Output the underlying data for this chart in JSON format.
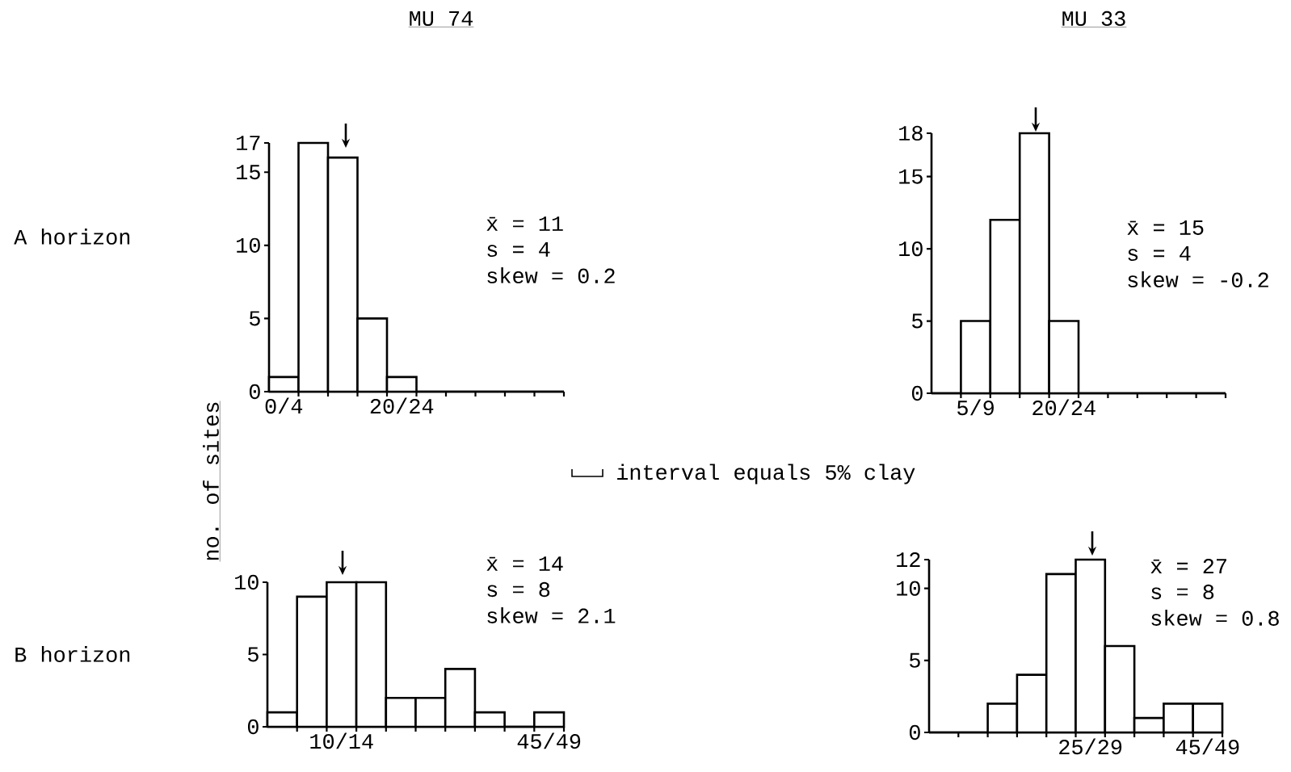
{
  "chart_data": [
    {
      "type": "bar",
      "title": "MU 74",
      "subtitle": "A horizon",
      "ylabel": "no. of sites",
      "categories": [
        "0/4",
        null,
        null,
        null,
        "20/24",
        null,
        null,
        null,
        null,
        null
      ],
      "values": [
        1,
        17,
        16,
        5,
        1,
        0,
        0,
        0,
        0,
        0
      ],
      "ylim": [
        0,
        17
      ],
      "yticks": [
        0,
        5,
        10,
        15,
        17
      ],
      "annotations": [
        "x̄ = 11",
        "s = 4",
        "skew = 0.2",
        "interval equals 5% clay"
      ]
    },
    {
      "type": "bar",
      "title": "MU 33",
      "categories": [
        null,
        "5/9",
        null,
        null,
        "20/24",
        null,
        null,
        null,
        null,
        null
      ],
      "values": [
        0,
        5,
        12,
        18,
        5,
        0,
        0,
        0,
        0,
        0
      ],
      "ylim": [
        0,
        18
      ],
      "yticks": [
        0,
        5,
        10,
        15,
        18
      ],
      "annotations": [
        "x̄ = 15",
        "s = 4",
        "skew = -0.2"
      ]
    },
    {
      "type": "bar",
      "subtitle": "B horizon",
      "categories": [
        null,
        null,
        "10/14",
        null,
        null,
        null,
        null,
        null,
        null,
        "45/49"
      ],
      "values": [
        1,
        9,
        10,
        10,
        2,
        2,
        4,
        1,
        0,
        1
      ],
      "ylim": [
        0,
        10
      ],
      "yticks": [
        0,
        5,
        10
      ],
      "annotations": [
        "x̄ = 14",
        "s = 8",
        "skew = 2.1"
      ]
    },
    {
      "type": "bar",
      "categories": [
        null,
        null,
        null,
        null,
        null,
        "25/29",
        null,
        null,
        null,
        "45/49"
      ],
      "values": [
        0,
        0,
        2,
        4,
        11,
        12,
        6,
        1,
        2,
        2
      ],
      "ylim": [
        0,
        12
      ],
      "yticks": [
        0,
        5,
        10,
        12
      ],
      "annotations": [
        "x̄ = 27",
        "s = 8",
        "skew = 0.8"
      ]
    }
  ]
}
